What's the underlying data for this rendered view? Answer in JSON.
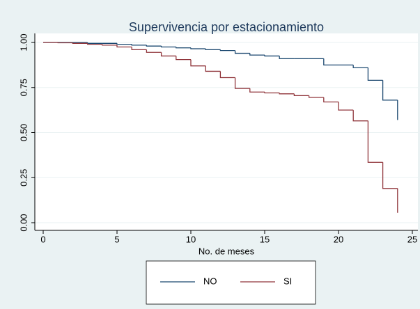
{
  "chart_data": {
    "type": "step",
    "title": "Supervivencia por estacionamiento",
    "xlabel": "No. de meses",
    "x": [
      0,
      1,
      2,
      3,
      4,
      5,
      6,
      7,
      8,
      9,
      10,
      11,
      12,
      13,
      14,
      15,
      16,
      17,
      18,
      19,
      20,
      21,
      22,
      23,
      24
    ],
    "series": [
      {
        "name": "NO",
        "color": "#1a476f",
        "values": [
          1.0,
          1.0,
          1.0,
          0.995,
          0.995,
          0.99,
          0.985,
          0.98,
          0.975,
          0.97,
          0.965,
          0.96,
          0.955,
          0.94,
          0.93,
          0.925,
          0.91,
          0.91,
          0.91,
          0.875,
          0.875,
          0.86,
          0.79,
          0.68,
          0.57
        ]
      },
      {
        "name": "SI",
        "color": "#90353b",
        "values": [
          1.0,
          0.998,
          0.995,
          0.99,
          0.985,
          0.975,
          0.96,
          0.945,
          0.925,
          0.905,
          0.87,
          0.84,
          0.805,
          0.745,
          0.725,
          0.72,
          0.715,
          0.705,
          0.695,
          0.67,
          0.625,
          0.565,
          0.335,
          0.19,
          0.055
        ]
      }
    ],
    "xlim": [
      0,
      25
    ],
    "xticks": [
      0,
      5,
      10,
      15,
      20,
      25
    ],
    "ylim": [
      0,
      1
    ],
    "yticks": [
      {
        "value": 0,
        "label": "0.00"
      },
      {
        "value": 0.25,
        "label": "0.25"
      },
      {
        "value": 0.5,
        "label": "0.50"
      },
      {
        "value": 0.75,
        "label": "0.75"
      },
      {
        "value": 1,
        "label": "1.00"
      }
    ],
    "grid": true
  }
}
